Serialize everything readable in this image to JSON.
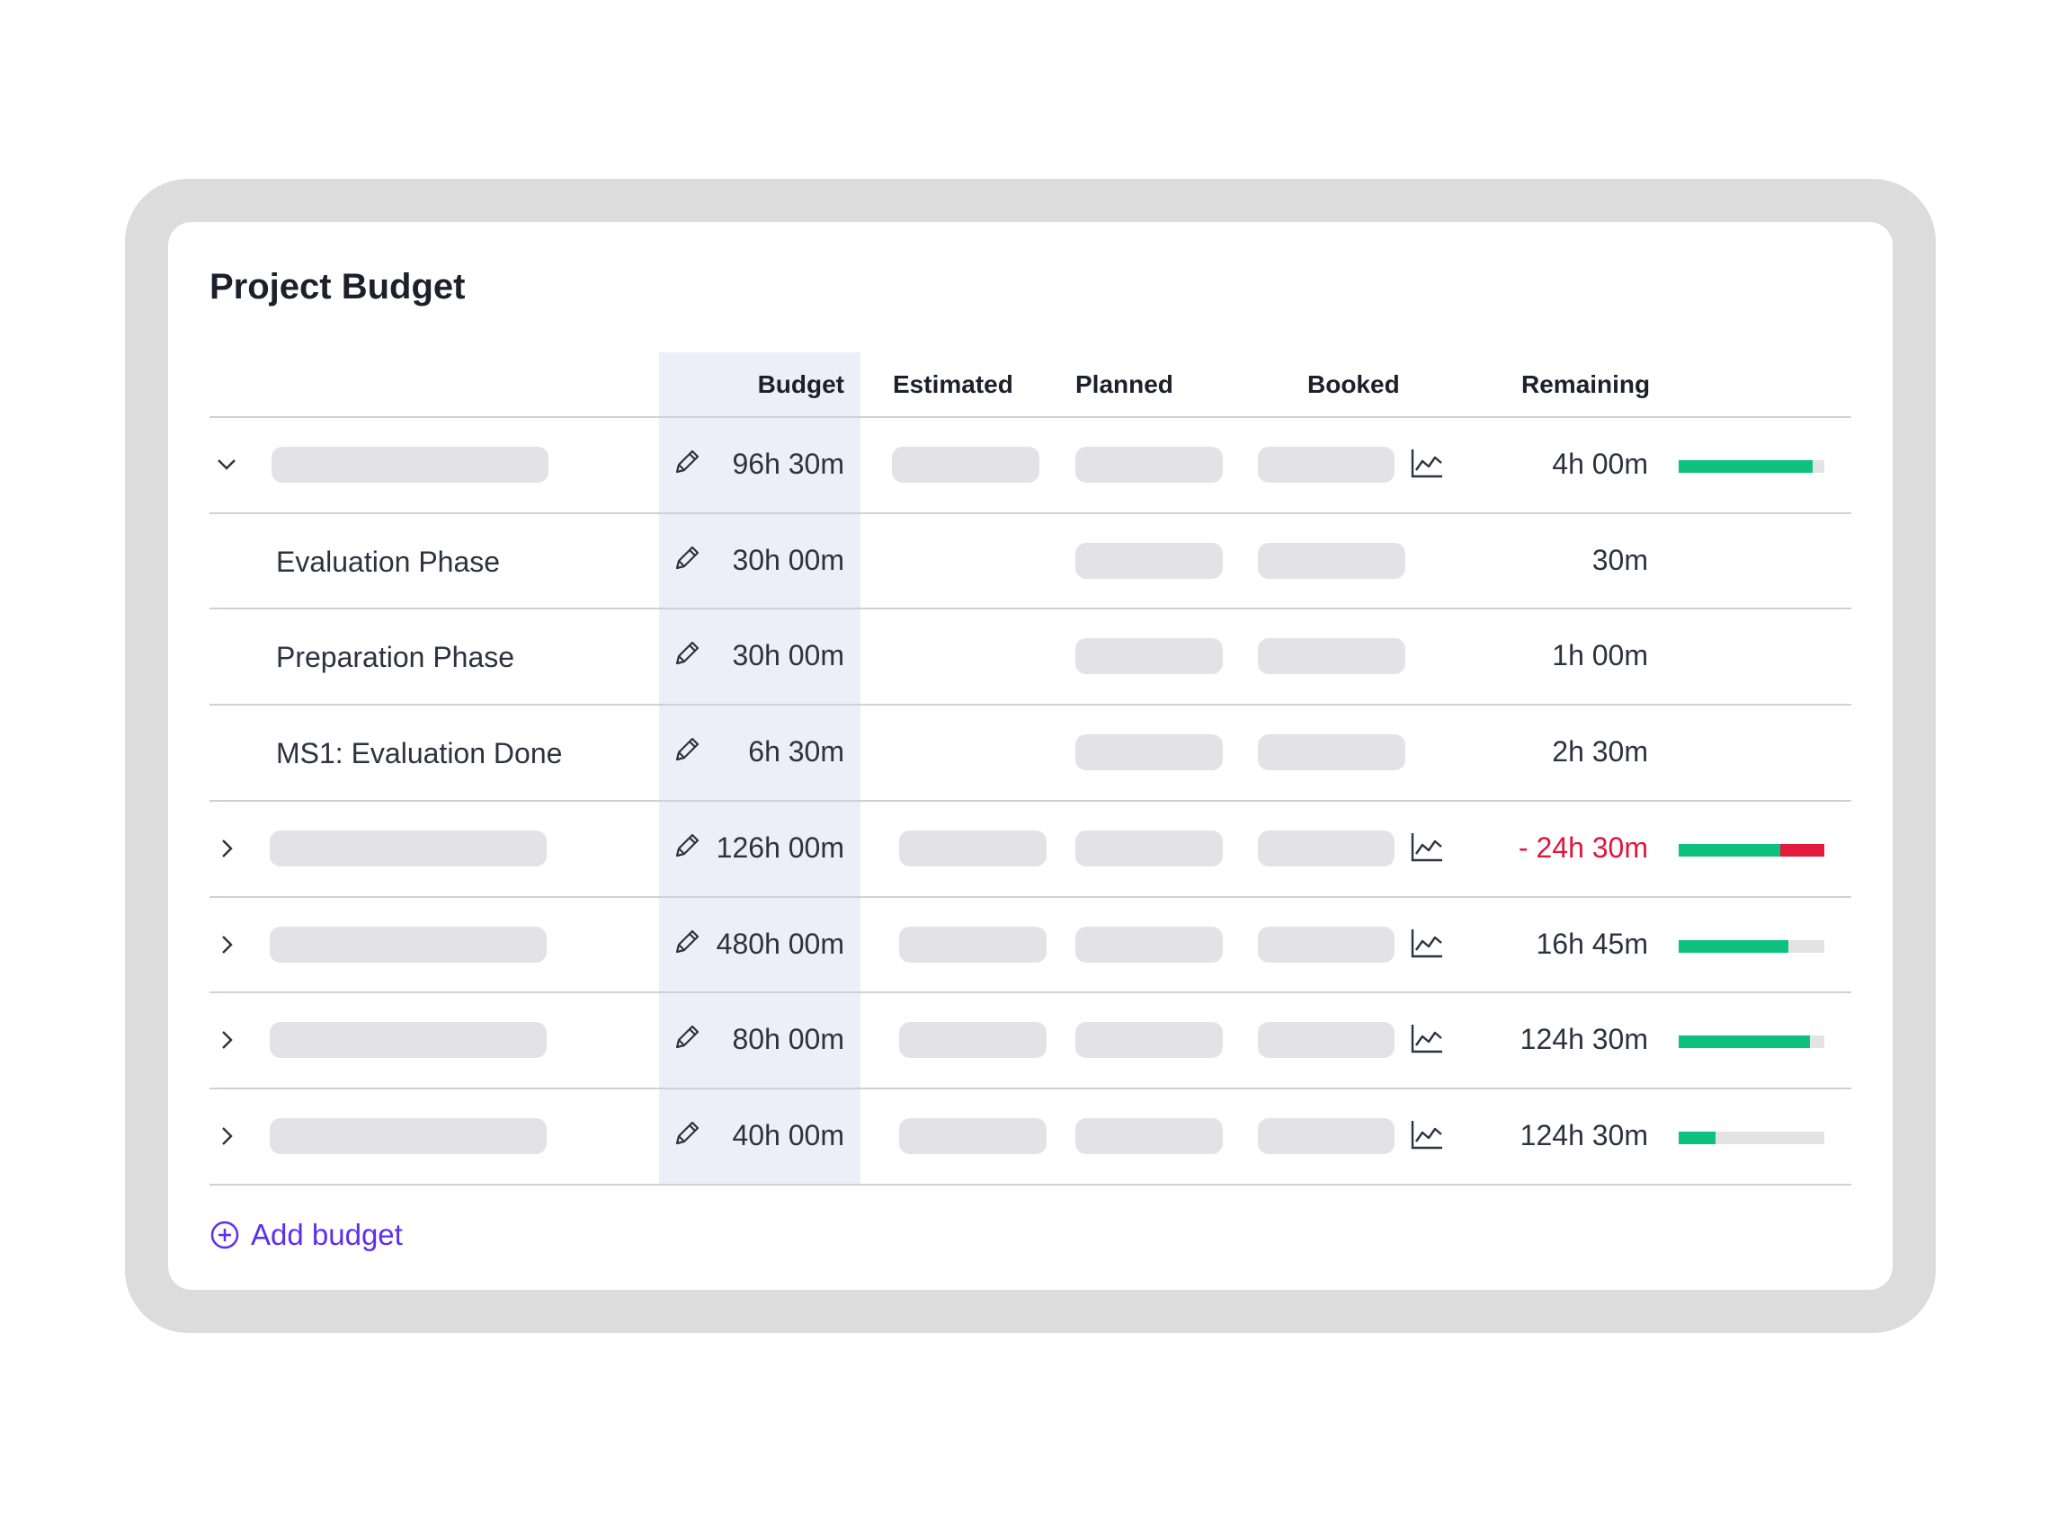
{
  "card": {
    "title": "Project Budget",
    "add_budget_label": "Add budget"
  },
  "columns": {
    "budget": "Budget",
    "estimated": "Estimated",
    "planned": "Planned",
    "booked": "Booked",
    "remaining": "Remaining"
  },
  "rows": [
    {
      "expand": "chevron-down-icon",
      "name": "",
      "budget": "96h 30m",
      "remaining": "4h 00m",
      "negative": false,
      "progress": 0.92,
      "over": 0
    },
    {
      "expand": "",
      "name": "Evaluation Phase",
      "budget": "30h 00m",
      "remaining": "30m",
      "negative": false
    },
    {
      "expand": "",
      "name": "Preparation Phase",
      "budget": "30h 00m",
      "remaining": "1h 00m",
      "negative": false
    },
    {
      "expand": "",
      "name": "MS1: Evaluation Done",
      "budget": "6h 30m",
      "remaining": "2h 30m",
      "negative": false
    },
    {
      "expand": "chevron-right-icon",
      "name": "",
      "budget": "126h 00m",
      "remaining": "- 24h 30m",
      "negative": true,
      "progress": 0.7,
      "over": 0.3
    },
    {
      "expand": "chevron-right-icon",
      "name": "",
      "budget": "480h 00m",
      "remaining": "16h 45m",
      "negative": false,
      "progress": 0.75,
      "over": 0
    },
    {
      "expand": "chevron-right-icon",
      "name": "",
      "budget": "80h 00m",
      "remaining": "124h 30m",
      "negative": false,
      "progress": 0.9,
      "over": 0
    },
    {
      "expand": "chevron-right-icon",
      "name": "",
      "budget": "40h 00m",
      "remaining": "124h 30m",
      "negative": false,
      "progress": 0.25,
      "over": 0
    }
  ],
  "colors": {
    "accent": "#5b2ff2",
    "progress": "#0cc27e",
    "over_budget": "#e31a3c",
    "budget_column": "#eeeef9"
  }
}
